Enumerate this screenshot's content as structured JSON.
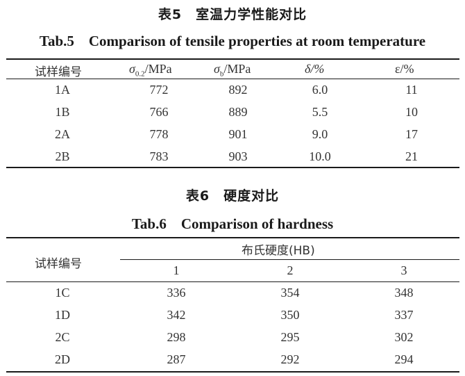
{
  "table5": {
    "title_cn": "表5　室温力学性能对比",
    "title_en": "Tab.5　Comparison of tensile properties at room temperature",
    "headers": {
      "sample": "试样编号",
      "sigma02_sym": "σ",
      "sigma02_sub": "0.2",
      "sigma02_unit": "/MPa",
      "sigmab_sym": "σ",
      "sigmab_sub": "b",
      "sigmab_unit": "/MPa",
      "delta": "δ/%",
      "eps": "ε/%"
    },
    "rows": [
      [
        "1A",
        "772",
        "892",
        "6.0",
        "11"
      ],
      [
        "1B",
        "766",
        "889",
        "5.5",
        "10"
      ],
      [
        "2A",
        "778",
        "901",
        "9.0",
        "17"
      ],
      [
        "2B",
        "783",
        "903",
        "10.0",
        "21"
      ]
    ]
  },
  "table6": {
    "title_cn": "表6　硬度对比",
    "title_en": "Tab.6　Comparison of hardness",
    "headers": {
      "sample": "试样编号",
      "group": "布氏硬度(HB)",
      "col1": "1",
      "col2": "2",
      "col3": "3"
    },
    "rows": [
      [
        "1C",
        "336",
        "354",
        "348"
      ],
      [
        "1D",
        "342",
        "350",
        "337"
      ],
      [
        "2C",
        "298",
        "295",
        "302"
      ],
      [
        "2D",
        "287",
        "292",
        "294"
      ]
    ]
  }
}
